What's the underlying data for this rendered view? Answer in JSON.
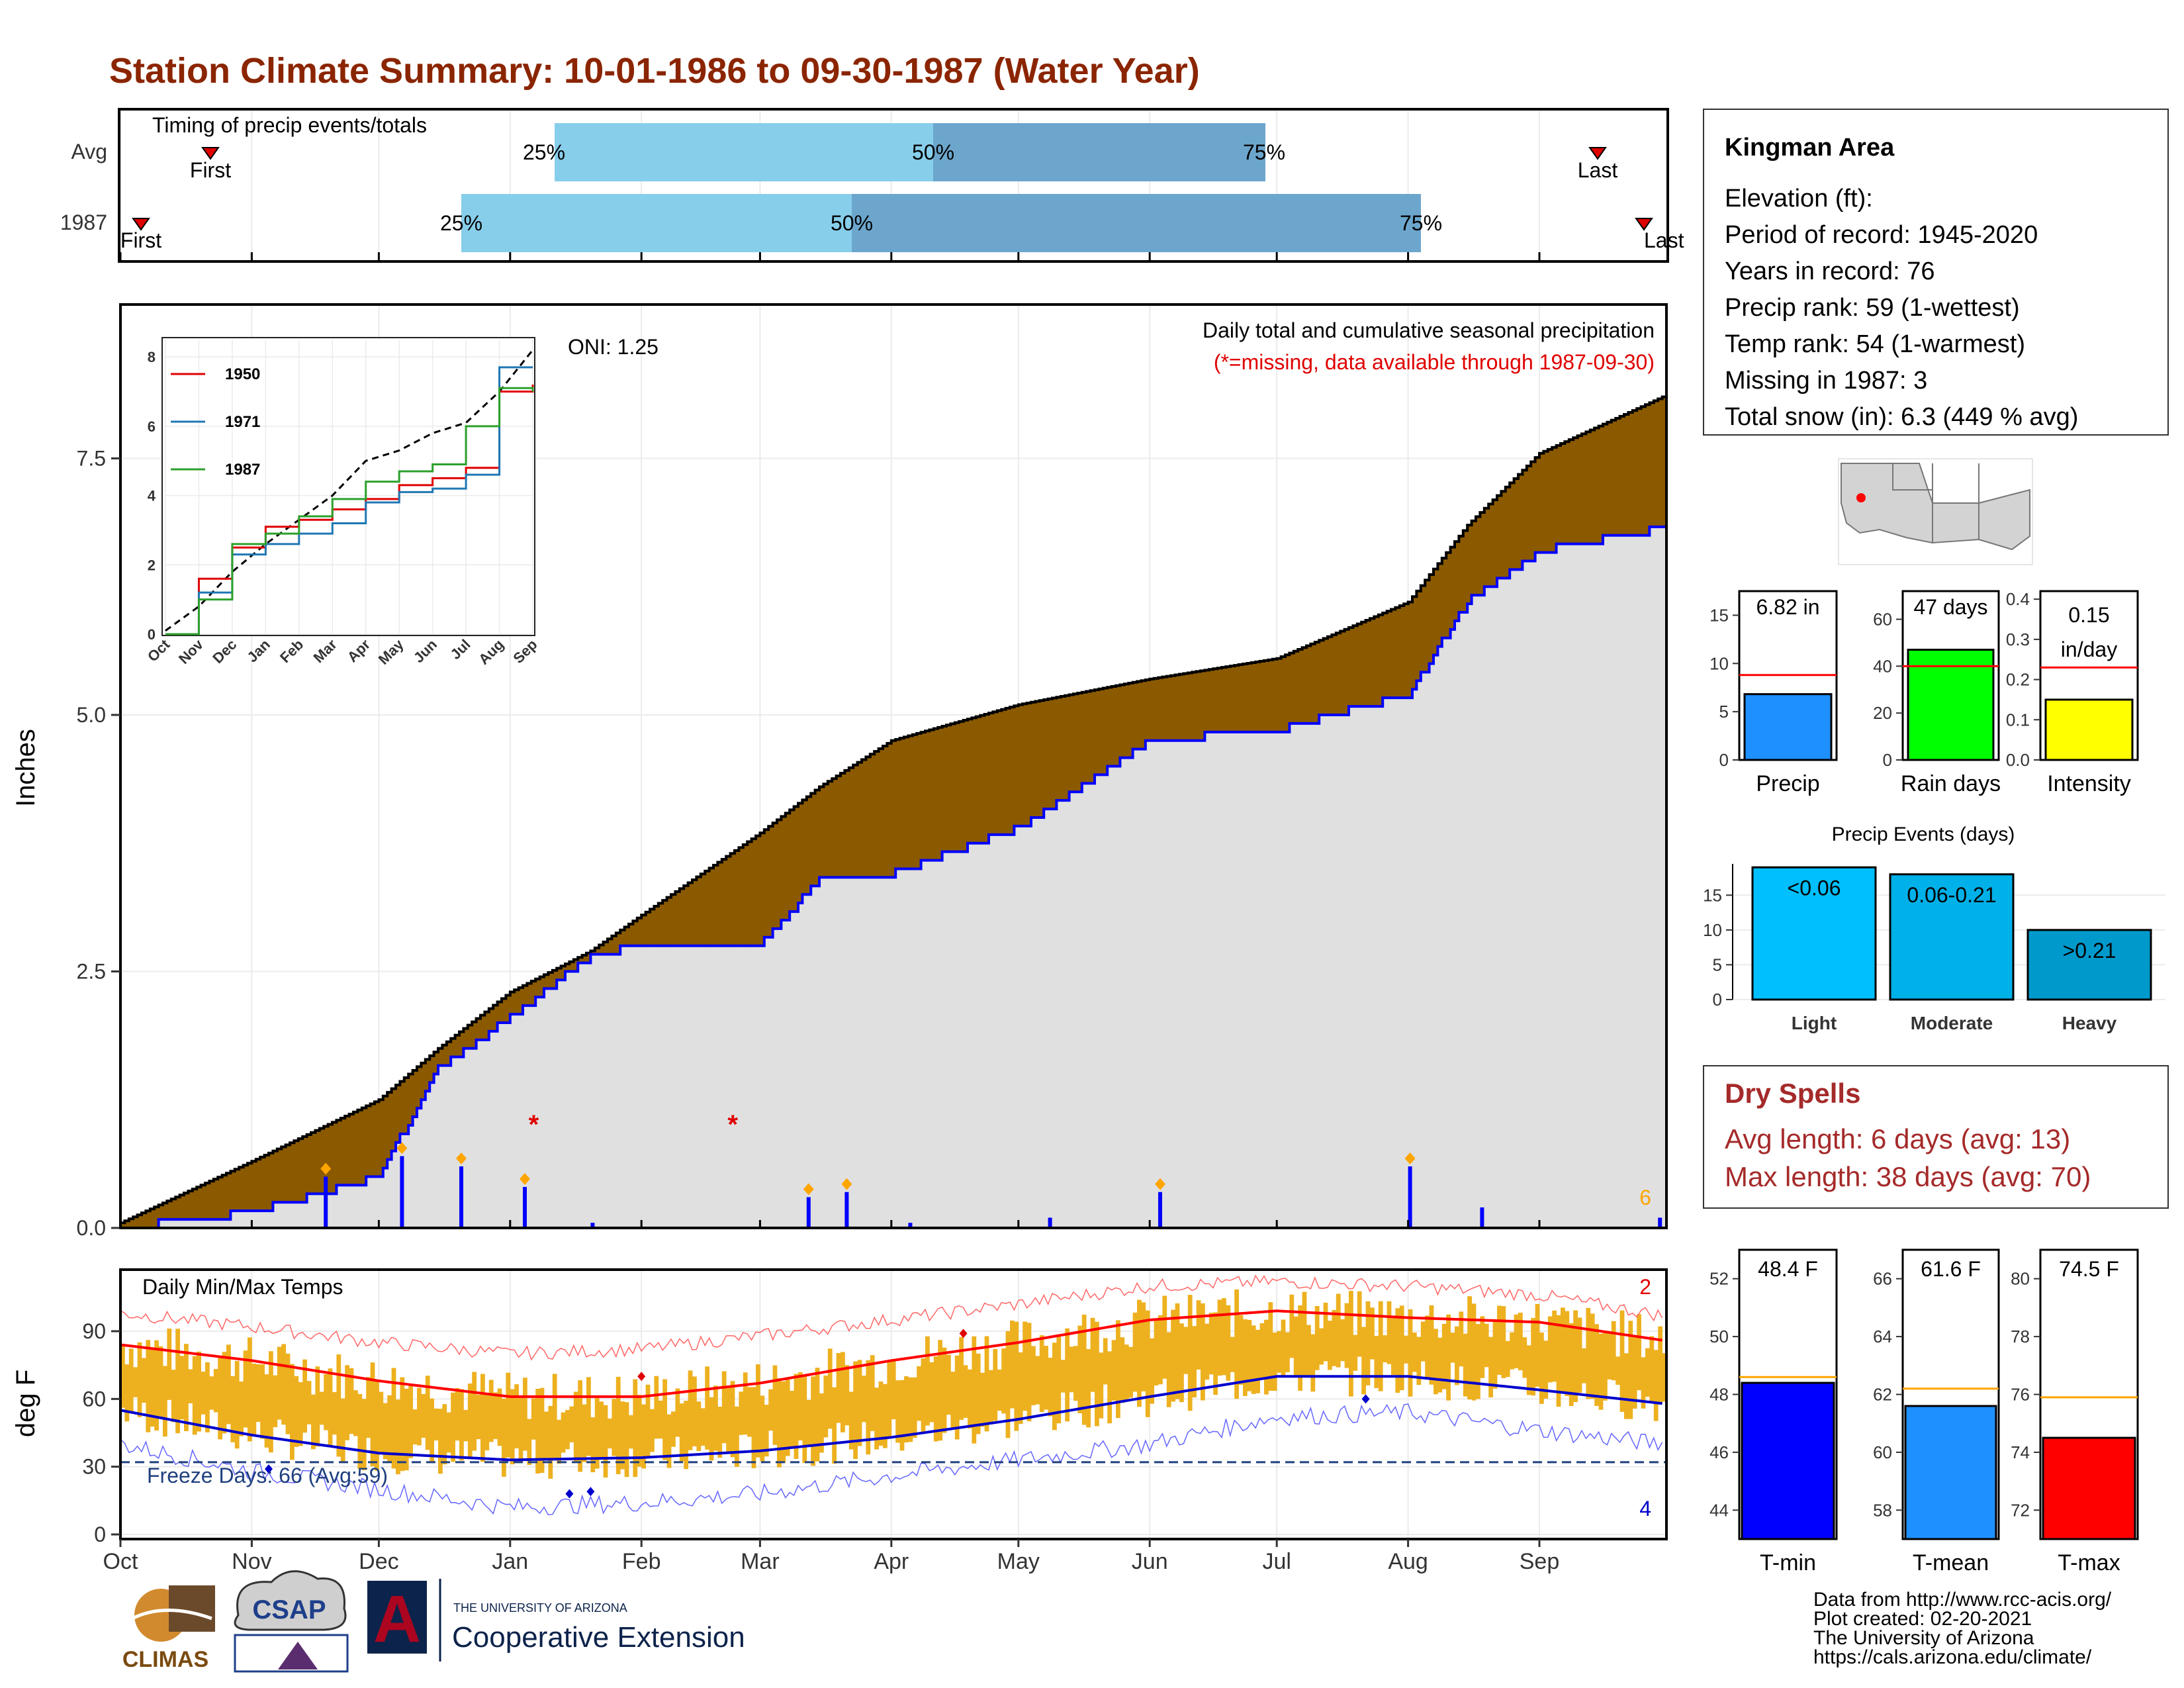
{
  "title": "Station Climate Summary: 10-01-1986 to 09-30-1987 (Water Year)",
  "colors": {
    "title": "#8B2500",
    "deficit_fill": "#8B5A00",
    "surplus_fill": "#008000",
    "observed_fill": "#E0E0E0",
    "obs_line": "#0000FF",
    "avg_line": "#000000",
    "temp_bar": "#EDB120",
    "tmax_avg": "#FF0000",
    "tmin_avg": "#0000CD",
    "light": "#00BFFF",
    "moderate": "#00B0E8",
    "heavy": "#0099CC",
    "pct_light": "#87CEEB",
    "pct_dark": "#6CA6CD",
    "dry": "#A52A2A"
  },
  "timing": {
    "title": "Timing of precip events/totals",
    "rows": [
      {
        "label": "Avg",
        "first": "First",
        "last": "Last",
        "p25": "25%",
        "p50": "50%",
        "p75": "75%"
      },
      {
        "label": "1987",
        "first": "First",
        "last": "Last",
        "p25": "25%",
        "p50": "50%",
        "p75": "75%"
      }
    ]
  },
  "main": {
    "ylabel": "Inches",
    "oni": "ONI: 1.25",
    "desc1": "Daily total and cumulative seasonal precipitation",
    "desc2": "(*=missing, data available through 1987-09-30)",
    "count_label": "6",
    "yticks": [
      "0.0",
      "2.5",
      "5.0",
      "7.5"
    ]
  },
  "inset": {
    "legend": [
      "1950",
      "1971",
      "1987"
    ],
    "yticks": [
      "0",
      "2",
      "4",
      "6",
      "8"
    ],
    "xticks": [
      "Oct",
      "Nov",
      "Dec",
      "Jan",
      "Feb",
      "Mar",
      "Apr",
      "May",
      "Jun",
      "Jul",
      "Aug",
      "Sep"
    ]
  },
  "temps": {
    "title": "Daily Min/Max Temps",
    "ylabel": "deg F",
    "freeze": "Freeze Days: 66 (Avg:59)",
    "hi_count": "2",
    "lo_count": "4",
    "yticks": [
      "0",
      "30",
      "60",
      "90"
    ]
  },
  "months": [
    "Oct",
    "Nov",
    "Dec",
    "Jan",
    "Feb",
    "Mar",
    "Apr",
    "May",
    "Jun",
    "Jul",
    "Aug",
    "Sep"
  ],
  "station": {
    "name": "Kingman Area",
    "lines": [
      "Elevation (ft):",
      "Period of record: 1945-2020",
      "Years in record: 76",
      "Precip rank: 59 (1-wettest)",
      "Temp rank: 54 (1-warmest)",
      "Missing in 1987: 3",
      "Total snow (in): 6.3 (449 % avg)"
    ]
  },
  "mini_precip": [
    {
      "label": "Precip",
      "value_text": "6.82 in",
      "yticks": [
        "0",
        "5",
        "10",
        "15"
      ]
    },
    {
      "label": "Rain days",
      "value_text": "47 days",
      "yticks": [
        "0",
        "20",
        "40",
        "60"
      ]
    },
    {
      "label": "Intensity",
      "value_text": "0.15\nin/day",
      "value_text_a": "0.15",
      "value_text_b": "in/day",
      "yticks": [
        "0.0",
        "0.1",
        "0.2",
        "0.3",
        "0.4"
      ]
    }
  ],
  "events": {
    "title": "Precip Events (days)",
    "bars": [
      {
        "label": "Light",
        "text": "<0.06"
      },
      {
        "label": "Moderate",
        "text": "0.06-0.21"
      },
      {
        "label": "Heavy",
        "text": ">0.21"
      }
    ],
    "yticks": [
      "0",
      "5",
      "10",
      "15"
    ]
  },
  "dry": {
    "title": "Dry Spells",
    "avg": "Avg length: 6 days (avg: 13)",
    "max": "Max length: 38 days (avg: 70)"
  },
  "mini_temp": [
    {
      "label": "T-min",
      "value_text": "48.4 F",
      "yticks": [
        "44",
        "46",
        "48",
        "50",
        "52"
      ]
    },
    {
      "label": "T-mean",
      "value_text": "61.6 F",
      "yticks": [
        "58",
        "60",
        "62",
        "64",
        "66"
      ]
    },
    {
      "label": "T-max",
      "value_text": "74.5 F",
      "yticks": [
        "72",
        "74",
        "76",
        "78",
        "80"
      ]
    }
  ],
  "credits": [
    "Data from http://www.rcc-acis.org/",
    "Plot created: 02-20-2021",
    "The University of Arizona",
    "https://cals.arizona.edu/climate/"
  ],
  "logos": {
    "climas": "CLIMAS",
    "csap": "CSAP",
    "ua_small": "THE UNIVERSITY OF ARIZONA",
    "coop": "Cooperative Extension",
    "ua_letter": "A"
  },
  "chart_data": [
    {
      "type": "area",
      "name": "cumulative precipitation",
      "units": "in",
      "ylim": [
        0,
        9
      ],
      "x_dates": [
        "10-01",
        "11-01",
        "12-01",
        "12-15",
        "01-01",
        "01-20",
        "02-01",
        "03-01",
        "03-15",
        "04-01",
        "05-01",
        "06-01",
        "07-01",
        "08-01",
        "08-15",
        "09-01",
        "09-30"
      ],
      "avg_cumulative": [
        0.05,
        0.65,
        1.25,
        1.75,
        2.3,
        2.7,
        3.05,
        3.85,
        4.3,
        4.75,
        5.1,
        5.35,
        5.55,
        6.1,
        6.85,
        7.55,
        8.1
      ],
      "obs_cumulative": [
        0.0,
        0.15,
        0.5,
        1.55,
        2.05,
        2.65,
        2.75,
        2.75,
        3.4,
        3.45,
        3.9,
        4.75,
        4.85,
        5.2,
        6.1,
        6.6,
        6.82
      ],
      "daily_bars": [
        {
          "date": "11-18",
          "value": 0.5
        },
        {
          "date": "12-06",
          "value": 0.7
        },
        {
          "date": "12-20",
          "value": 0.6
        },
        {
          "date": "01-04",
          "value": 0.4
        },
        {
          "date": "01-20",
          "value": 0.05
        },
        {
          "date": "03-12",
          "value": 0.3
        },
        {
          "date": "03-21",
          "value": 0.35
        },
        {
          "date": "04-05",
          "value": 0.05
        },
        {
          "date": "05-08",
          "value": 0.1
        },
        {
          "date": "06-03",
          "value": 0.35
        },
        {
          "date": "08-01",
          "value": 0.6
        },
        {
          "date": "08-18",
          "value": 0.2
        },
        {
          "date": "09-29",
          "value": 0.1
        }
      ]
    },
    {
      "type": "line",
      "name": "inset cumulative comparison",
      "ylim": [
        0,
        8.5
      ],
      "series": [
        {
          "name": "1950",
          "values": [
            0,
            1.6,
            2.5,
            3.1,
            3.3,
            3.6,
            3.9,
            4.3,
            4.5,
            4.8,
            7.0,
            7.2
          ]
        },
        {
          "name": "1971",
          "values": [
            0,
            1.2,
            2.3,
            2.6,
            2.9,
            3.2,
            3.8,
            4.1,
            4.2,
            4.6,
            7.7,
            7.7
          ]
        },
        {
          "name": "1987",
          "values": [
            0,
            1.0,
            2.6,
            2.9,
            3.4,
            3.9,
            4.4,
            4.7,
            4.9,
            6.0,
            7.1,
            7.0
          ]
        }
      ],
      "avg_values": [
        0.1,
        0.8,
        1.8,
        2.6,
        3.3,
        4.0,
        5.0,
        5.3,
        5.8,
        6.1,
        7.0,
        8.2
      ]
    },
    {
      "type": "bar",
      "name": "daily min/max temps",
      "units": "deg F",
      "ylim": [
        0,
        115
      ],
      "x_dates": [
        "10-01",
        "11-01",
        "12-01",
        "01-01",
        "02-01",
        "03-01",
        "04-01",
        "05-01",
        "06-01",
        "07-01",
        "08-01",
        "09-01",
        "09-30"
      ],
      "avg_max": [
        84,
        77,
        68,
        61,
        61,
        67,
        77,
        85,
        95,
        99,
        96,
        94,
        86
      ],
      "avg_min": [
        55,
        44,
        36,
        33,
        34,
        37,
        43,
        51,
        61,
        70,
        70,
        64,
        58
      ],
      "record_max": [
        98,
        92,
        85,
        80,
        82,
        88,
        95,
        102,
        110,
        112,
        110,
        106,
        97
      ],
      "record_min": [
        40,
        28,
        20,
        12,
        14,
        18,
        26,
        33,
        40,
        52,
        54,
        46,
        40
      ],
      "freeze_line": 32
    },
    {
      "type": "bar",
      "name": "season precip",
      "categories": [
        "Precip",
        "Rain days",
        "Intensity"
      ],
      "values": [
        6.82,
        47,
        0.15
      ],
      "averages": [
        8.8,
        40,
        0.23
      ],
      "ylims": [
        [
          0,
          17.5
        ],
        [
          0,
          72
        ],
        [
          0,
          0.42
        ]
      ]
    },
    {
      "type": "bar",
      "name": "precip events",
      "categories": [
        "Light",
        "Moderate",
        "Heavy"
      ],
      "values": [
        19,
        18,
        10
      ],
      "ylim": [
        0,
        19.5
      ]
    },
    {
      "type": "bar",
      "name": "season temps",
      "categories": [
        "T-min",
        "T-mean",
        "T-max"
      ],
      "values": [
        48.4,
        61.6,
        74.5
      ],
      "averages": [
        48.6,
        62.2,
        75.9
      ],
      "ylims": [
        [
          43,
          53
        ],
        [
          57,
          67
        ],
        [
          71,
          81
        ]
      ]
    }
  ]
}
